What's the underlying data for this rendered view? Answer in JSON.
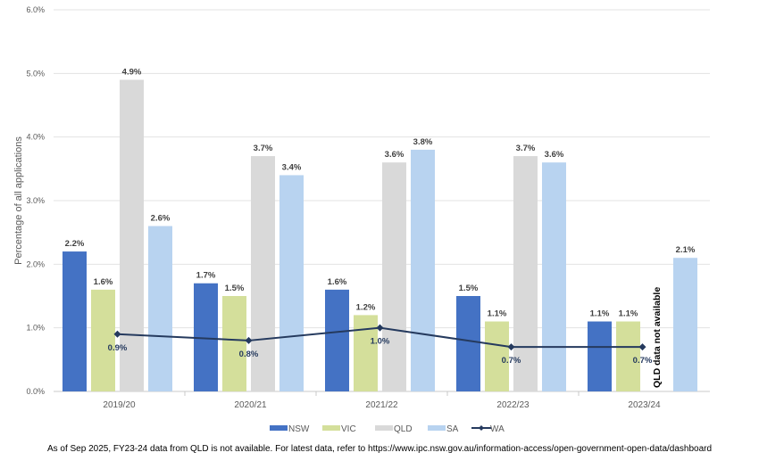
{
  "chart_data": {
    "type": "bar",
    "title": "",
    "xlabel": "",
    "ylabel": "Percentage of all applications",
    "ylim": [
      0,
      6
    ],
    "yticks": [
      "0.0%",
      "1.0%",
      "2.0%",
      "3.0%",
      "4.0%",
      "5.0%",
      "6.0%"
    ],
    "grid": true,
    "legend_position": "bottom",
    "categories": [
      "2019/20",
      "2020/21",
      "2021/22",
      "2022/23",
      "2023/24"
    ],
    "series": [
      {
        "name": "NSW",
        "kind": "bar",
        "color": "#4472c4",
        "values": [
          2.2,
          1.7,
          1.6,
          1.5,
          1.1
        ],
        "labels": [
          "2.2%",
          "1.7%",
          "1.6%",
          "1.5%",
          "1.1%"
        ]
      },
      {
        "name": "VIC",
        "kind": "bar",
        "color": "#d4df9b",
        "values": [
          1.6,
          1.5,
          1.2,
          1.1,
          1.1
        ],
        "labels": [
          "1.6%",
          "1.5%",
          "1.2%",
          "1.1%",
          "1.1%"
        ]
      },
      {
        "name": "QLD",
        "kind": "bar",
        "color": "#d9d9d9",
        "values": [
          4.9,
          3.7,
          3.6,
          3.7,
          null
        ],
        "labels": [
          "4.9%",
          "3.7%",
          "3.6%",
          "3.7%",
          null
        ]
      },
      {
        "name": "SA",
        "kind": "bar",
        "color": "#b8d3f0",
        "values": [
          2.6,
          3.4,
          3.8,
          3.6,
          2.1
        ],
        "labels": [
          "2.6%",
          "3.4%",
          "3.8%",
          "3.6%",
          "2.1%"
        ]
      },
      {
        "name": "WA",
        "kind": "line",
        "color": "#253a5e",
        "values": [
          0.9,
          0.8,
          1.0,
          0.7,
          0.7
        ],
        "labels": [
          "0.9%",
          "0.8%",
          "1.0%",
          "0.7%",
          "0.7%"
        ]
      }
    ],
    "annotation": "QLD data not available"
  },
  "footnote": "As of Sep 2025, FY23-24 data from QLD is not available. For latest data, refer to https://www.ipc.nsw.gov.au/information-access/open-government-open-data/dashboard"
}
